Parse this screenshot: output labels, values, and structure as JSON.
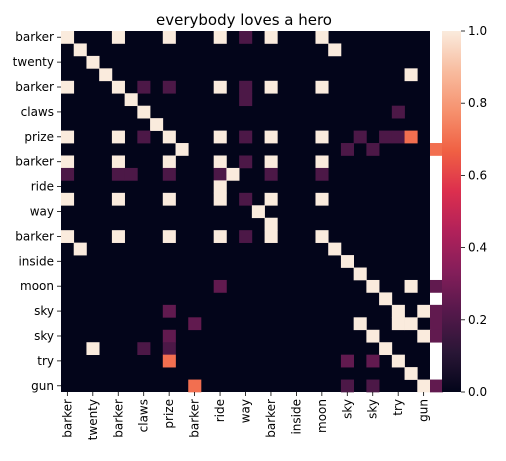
{
  "chart_data": {
    "type": "heatmap",
    "title": "everybody loves a hero",
    "xlabel": "",
    "ylabel": "",
    "tokens": [
      "barker",
      "",
      "twenty",
      "",
      "barker",
      "",
      "claws",
      "",
      "prize",
      "",
      "barker",
      "",
      "ride",
      "",
      "way",
      "",
      "barker",
      "",
      "inside",
      "",
      "moon",
      "",
      "sky",
      "",
      "sky",
      "",
      "try",
      "",
      "gun"
    ],
    "x_tick_labels": [
      "barker",
      "twenty",
      "barker",
      "claws",
      "prize",
      "barker",
      "ride",
      "way",
      "barker",
      "inside",
      "moon",
      "sky",
      "sky",
      "try",
      "gun"
    ],
    "y_tick_labels": [
      "barker",
      "twenty",
      "barker",
      "claws",
      "prize",
      "barker",
      "ride",
      "way",
      "barker",
      "inside",
      "moon",
      "sky",
      "sky",
      "try",
      "gun"
    ],
    "vmin": 0,
    "vmax": 1,
    "colorbar_ticks": [
      "0.0",
      "0.2",
      "0.4",
      "0.6",
      "0.8",
      "1.0"
    ],
    "colormap": "rocket",
    "colormap_stops": [
      "#03051a",
      "#2a1636",
      "#55184b",
      "#841e5a",
      "#b1215a",
      "#dc2f4e",
      "#f06043",
      "#f6916e",
      "#f8bc9f",
      "#faebdd"
    ],
    "cells": [
      [
        0,
        0,
        1.0
      ],
      [
        0,
        4,
        1.0
      ],
      [
        0,
        8,
        1.0
      ],
      [
        0,
        12,
        1.0
      ],
      [
        0,
        14,
        0.2
      ],
      [
        0,
        16,
        1.0
      ],
      [
        0,
        20,
        1.0
      ],
      [
        1,
        1,
        1.0
      ],
      [
        1,
        21,
        1.0
      ],
      [
        2,
        2,
        1.0
      ],
      [
        3,
        3,
        1.0
      ],
      [
        3,
        27,
        1.0
      ],
      [
        4,
        0,
        1.0
      ],
      [
        4,
        4,
        1.0
      ],
      [
        4,
        6,
        0.2
      ],
      [
        4,
        8,
        0.2
      ],
      [
        4,
        12,
        1.0
      ],
      [
        4,
        14,
        0.2
      ],
      [
        4,
        16,
        1.0
      ],
      [
        4,
        20,
        1.0
      ],
      [
        5,
        5,
        1.0
      ],
      [
        5,
        14,
        0.2
      ],
      [
        6,
        6,
        1.0
      ],
      [
        6,
        26,
        0.2
      ],
      [
        7,
        7,
        1.0
      ],
      [
        8,
        0,
        1.0
      ],
      [
        8,
        4,
        1.0
      ],
      [
        8,
        6,
        0.2
      ],
      [
        8,
        8,
        1.0
      ],
      [
        8,
        12,
        1.0
      ],
      [
        8,
        14,
        0.2
      ],
      [
        8,
        16,
        1.0
      ],
      [
        8,
        20,
        1.0
      ],
      [
        8,
        23,
        0.2
      ],
      [
        8,
        25,
        0.2
      ],
      [
        8,
        26,
        0.2
      ],
      [
        8,
        27,
        0.7
      ],
      [
        9,
        9,
        1.0
      ],
      [
        9,
        22,
        0.2
      ],
      [
        9,
        24,
        0.2
      ],
      [
        9,
        29,
        0.7
      ],
      [
        10,
        0,
        1.0
      ],
      [
        10,
        4,
        1.0
      ],
      [
        10,
        8,
        1.0
      ],
      [
        10,
        12,
        1.0
      ],
      [
        10,
        14,
        0.2
      ],
      [
        10,
        16,
        1.0
      ],
      [
        10,
        20,
        1.0
      ],
      [
        11,
        0,
        0.2
      ],
      [
        11,
        4,
        0.2
      ],
      [
        11,
        5,
        0.2
      ],
      [
        11,
        8,
        0.2
      ],
      [
        11,
        12,
        0.2
      ],
      [
        11,
        13,
        1.0
      ],
      [
        11,
        16,
        0.2
      ],
      [
        11,
        20,
        0.2
      ],
      [
        12,
        12,
        1.0
      ],
      [
        13,
        0,
        1.0
      ],
      [
        13,
        4,
        1.0
      ],
      [
        13,
        8,
        1.0
      ],
      [
        13,
        12,
        1.0
      ],
      [
        13,
        14,
        0.2
      ],
      [
        13,
        16,
        1.0
      ],
      [
        13,
        20,
        1.0
      ],
      [
        14,
        15,
        1.0
      ],
      [
        15,
        16,
        1.0
      ],
      [
        16,
        0,
        1.0
      ],
      [
        16,
        4,
        1.0
      ],
      [
        16,
        8,
        1.0
      ],
      [
        16,
        12,
        1.0
      ],
      [
        16,
        14,
        0.2
      ],
      [
        16,
        16,
        1.0
      ],
      [
        16,
        20,
        1.0
      ],
      [
        17,
        1,
        1.0
      ],
      [
        17,
        21,
        1.0
      ],
      [
        18,
        22,
        1.0
      ],
      [
        19,
        23,
        1.0
      ],
      [
        20,
        12,
        0.25
      ],
      [
        20,
        24,
        1.0
      ],
      [
        20,
        27,
        1.0
      ],
      [
        20,
        29,
        0.25
      ],
      [
        21,
        25,
        1.0
      ],
      [
        22,
        8,
        0.25
      ],
      [
        22,
        26,
        1.0
      ],
      [
        22,
        28,
        1.0
      ],
      [
        22,
        29,
        0.25
      ],
      [
        23,
        10,
        0.25
      ],
      [
        23,
        23,
        1.0
      ],
      [
        23,
        26,
        1.0
      ],
      [
        23,
        27,
        1.0
      ],
      [
        23,
        29,
        0.25
      ],
      [
        24,
        8,
        0.25
      ],
      [
        24,
        24,
        1.0
      ],
      [
        24,
        28,
        1.0
      ],
      [
        24,
        29,
        0.25
      ],
      [
        25,
        2,
        1.0
      ],
      [
        25,
        6,
        0.2
      ],
      [
        25,
        8,
        0.2
      ],
      [
        25,
        25,
        1.0
      ],
      [
        26,
        8,
        0.7
      ],
      [
        26,
        22,
        0.25
      ],
      [
        26,
        24,
        0.25
      ],
      [
        26,
        26,
        1.0
      ],
      [
        27,
        27,
        1.0
      ],
      [
        28,
        10,
        0.7
      ],
      [
        28,
        22,
        0.2
      ],
      [
        28,
        24,
        0.2
      ],
      [
        28,
        28,
        1.0
      ],
      [
        28,
        29,
        0.25
      ]
    ]
  }
}
